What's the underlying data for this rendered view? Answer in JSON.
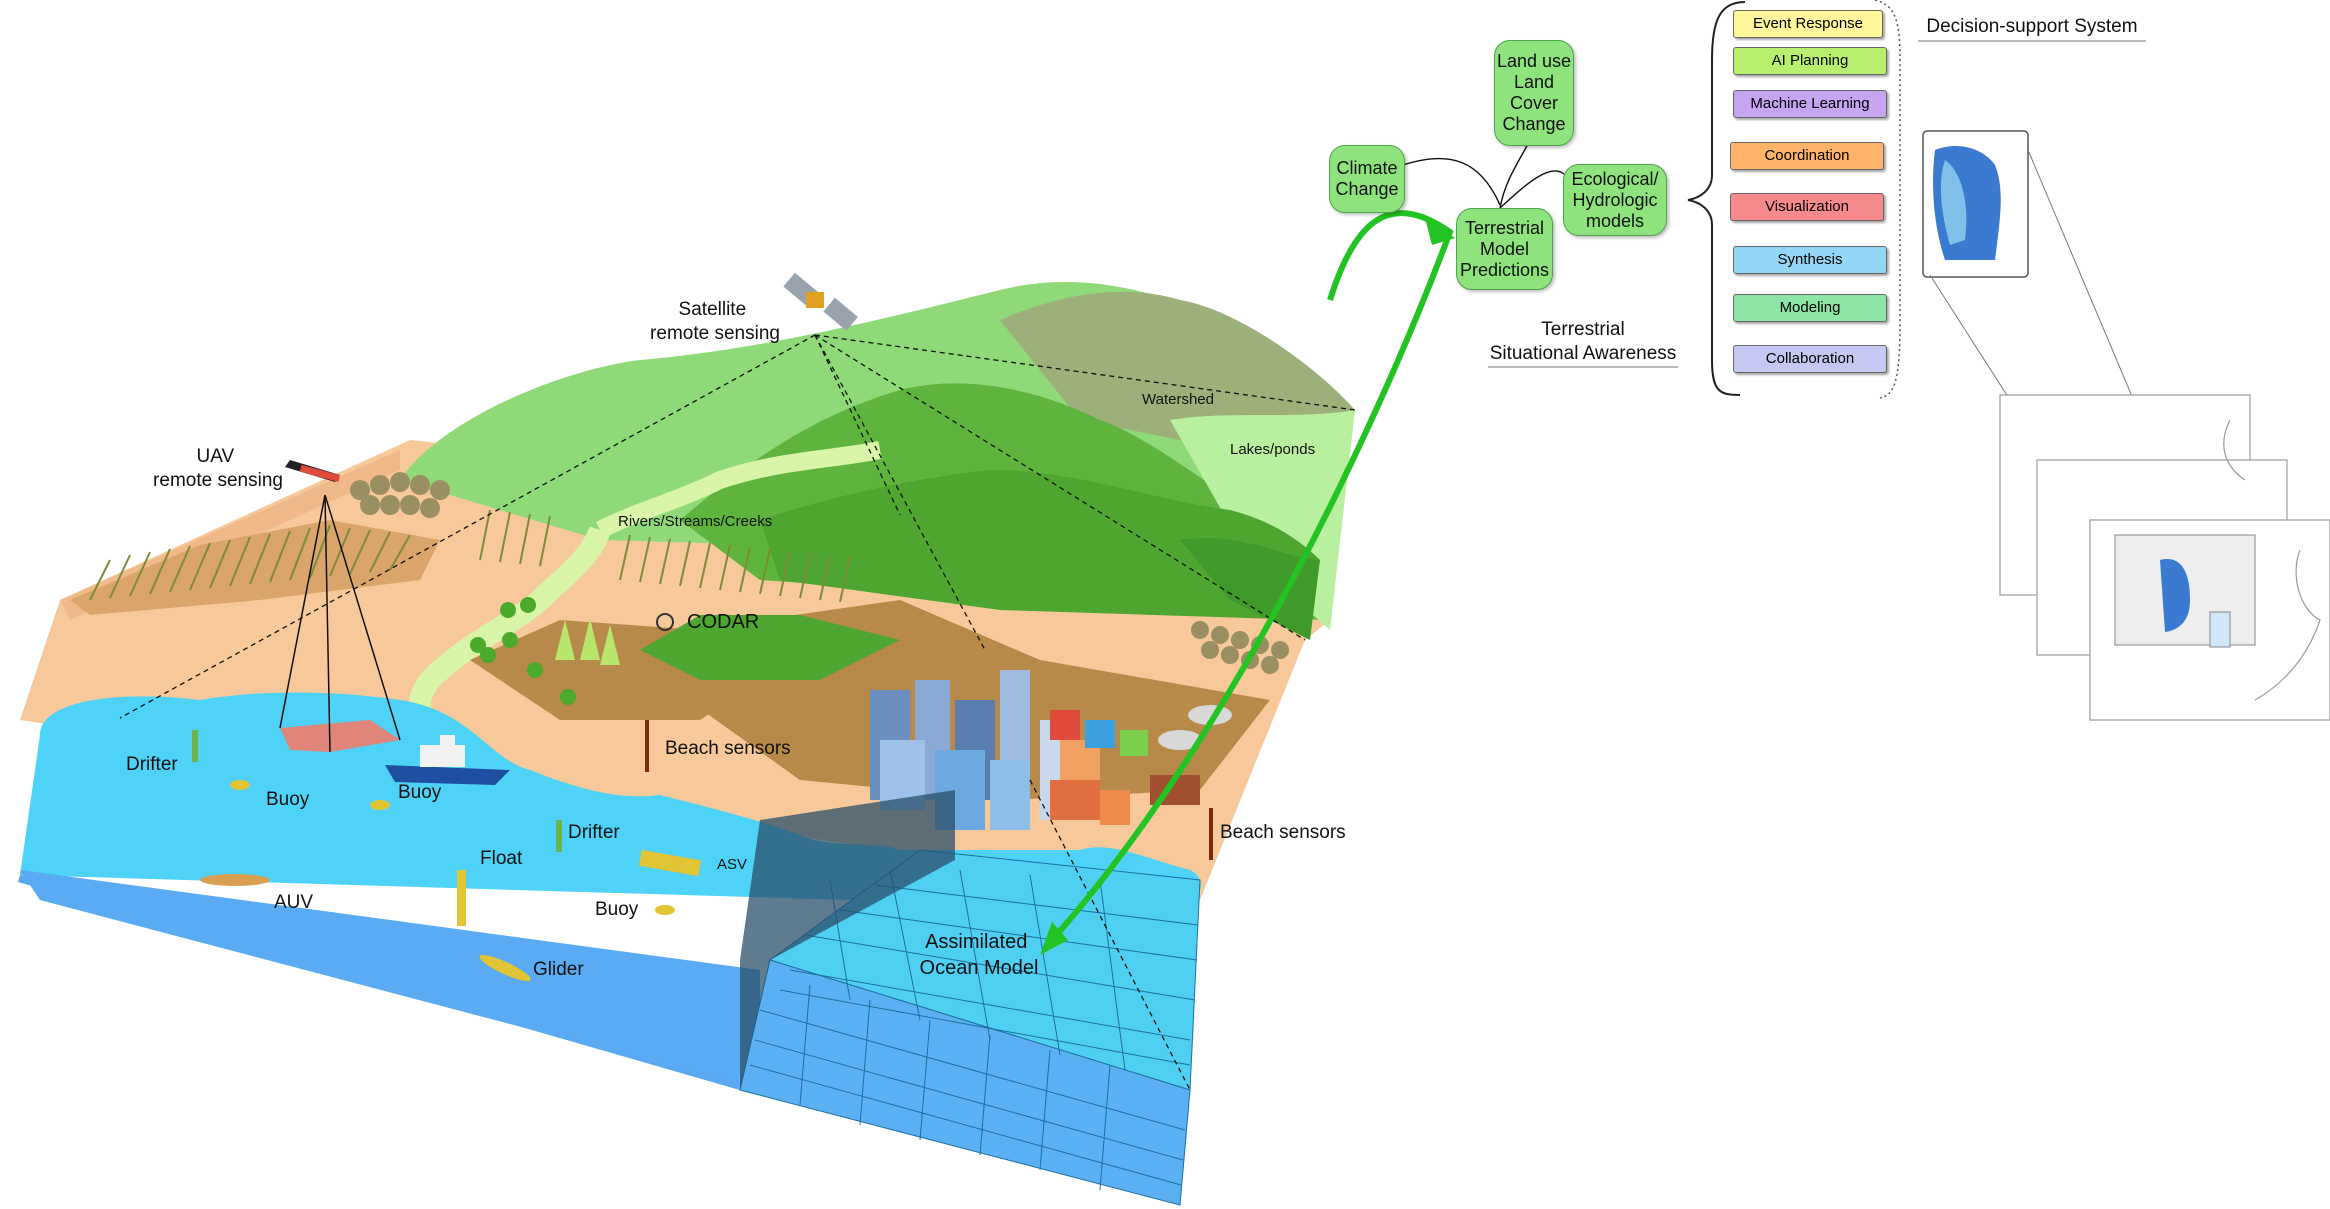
{
  "scene_labels": {
    "satellite": "Satellite\nremote sensing",
    "uav": "UAV\nremote sensing",
    "watershed": "Watershed",
    "lakes": "Lakes/ponds",
    "rivers": "Rivers/Streams/Creeks",
    "codar": "CODAR",
    "beach_sensors_1": "Beach sensors",
    "beach_sensors_2": "Beach sensors",
    "drifter_1": "Drifter",
    "drifter_2": "Drifter",
    "buoy_1": "Buoy",
    "buoy_2": "Buoy",
    "buoy_3": "Buoy",
    "float": "Float",
    "asv": "ASV",
    "auv": "AUV",
    "glider": "Glider",
    "assimilated_model": "Assimilated\nOcean Model"
  },
  "terrestrial": {
    "climate_change": "Climate\nChange",
    "land_use": "Land use\nLand\nCover\nChange",
    "eco_models": "Ecological/\nHydrologic\nmodels",
    "predictions": "Terrestrial\nModel\nPredictions",
    "situational_awareness": "Terrestrial\nSituational Awareness"
  },
  "dss": {
    "title": "Decision-support System",
    "items": [
      {
        "label": "Event Response",
        "color": "#fff59a"
      },
      {
        "label": "AI Planning",
        "color": "#b7ef6e"
      },
      {
        "label": "Machine Learning",
        "color": "#c6a4ef"
      },
      {
        "label": "Coordination",
        "color": "#ffb46a"
      },
      {
        "label": "Visualization",
        "color": "#f78a8a"
      },
      {
        "label": "Synthesis",
        "color": "#93d6f5"
      },
      {
        "label": "Modeling",
        "color": "#8ee6a6"
      },
      {
        "label": "Collaboration",
        "color": "#c4c8f3"
      }
    ]
  },
  "colors": {
    "ocean_top": "#4fd2f7",
    "ocean_side": "#5aa8f2",
    "sand": "#f7c99a",
    "hill_green": "#6dbb4a",
    "arrow_green": "#22c322"
  }
}
